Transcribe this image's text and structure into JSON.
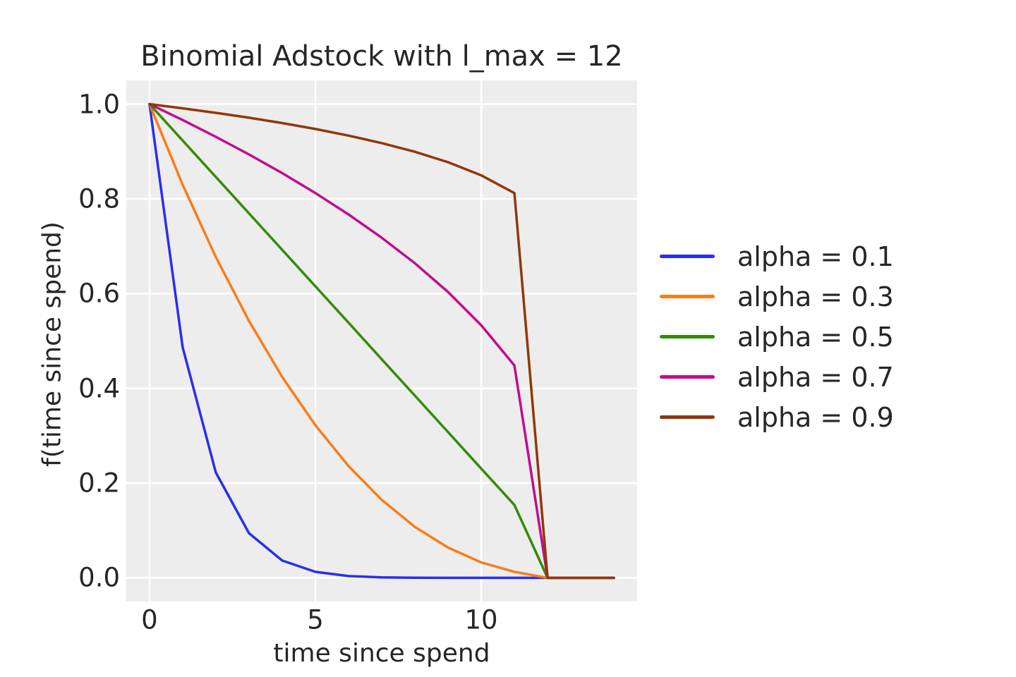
{
  "figure": {
    "background_color": "#ffffff",
    "text_color": "#262626"
  },
  "chart_data": {
    "type": "line",
    "title": "Binomial Adstock with l_max = 12",
    "xlabel": "time since spend",
    "ylabel": "f(time since spend)",
    "x": [
      0,
      1,
      2,
      3,
      4,
      5,
      6,
      7,
      8,
      9,
      10,
      11,
      12,
      13,
      14
    ],
    "series": [
      {
        "name": "alpha = 0.1",
        "color": "#2a2eec",
        "values": [
          1.0,
          0.4866,
          0.2224,
          0.0942,
          0.0365,
          0.0127,
          0.0038,
          0.001,
          0.0002,
          0.0,
          0.0,
          0.0,
          0.0,
          0.0,
          0.0
        ]
      },
      {
        "name": "alpha = 0.3",
        "color": "#fa7c17",
        "values": [
          1.0,
          0.8297,
          0.6772,
          0.5422,
          0.424,
          0.3221,
          0.2359,
          0.1646,
          0.1076,
          0.0639,
          0.0326,
          0.0127,
          0.0,
          0.0,
          0.0
        ]
      },
      {
        "name": "alpha = 0.5",
        "color": "#328c06",
        "values": [
          1.0,
          0.9231,
          0.8462,
          0.7692,
          0.6923,
          0.6154,
          0.5385,
          0.4615,
          0.3846,
          0.3077,
          0.2308,
          0.1538,
          0.0,
          0.0,
          0.0
        ]
      },
      {
        "name": "alpha = 0.7",
        "color": "#c10c90",
        "values": [
          1.0,
          0.9663,
          0.9309,
          0.8937,
          0.8542,
          0.8121,
          0.767,
          0.7179,
          0.664,
          0.6034,
          0.5334,
          0.4483,
          0.0,
          0.0,
          0.0
        ]
      },
      {
        "name": "alpha = 0.9",
        "color": "#933708",
        "values": [
          1.0,
          0.9911,
          0.9816,
          0.9713,
          0.96,
          0.9475,
          0.9335,
          0.9177,
          0.8993,
          0.8773,
          0.8497,
          0.8122,
          0.0,
          0.0,
          0.0
        ]
      }
    ],
    "xlim": [
      -0.7,
      14.7
    ],
    "ylim": [
      -0.05,
      1.05
    ],
    "xticks": [
      0,
      5,
      10
    ],
    "xtick_labels": [
      "0",
      "5",
      "10"
    ],
    "yticks": [
      0.0,
      0.2,
      0.4,
      0.6,
      0.8,
      1.0
    ],
    "ytick_labels": [
      "0.0",
      "0.2",
      "0.4",
      "0.6",
      "0.8",
      "1.0"
    ],
    "grid": true,
    "legend_position": "outside-right",
    "plot_background": "#ededed",
    "grid_color": "#ffffff",
    "line_width": 3.5
  }
}
